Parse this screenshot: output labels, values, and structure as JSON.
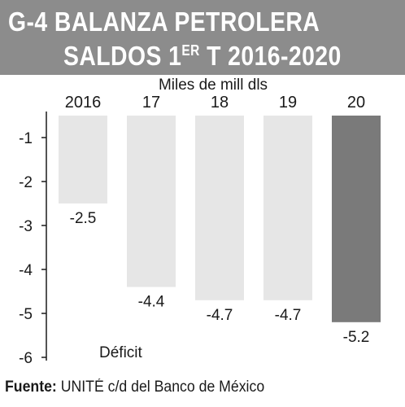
{
  "header": {
    "title_line1": "G-4  BALANZA PETROLERA",
    "title_line2_pre": "SALDOS 1",
    "title_line2_sup": "ER",
    "title_line2_post": " T 2016-2020",
    "bg_color": "#8c8c8c"
  },
  "chart_data": {
    "type": "bar",
    "unit_label": "Miles de mill dls",
    "categories": [
      "2016",
      "17",
      "18",
      "19",
      "20"
    ],
    "values": [
      -2.5,
      -4.4,
      -4.7,
      -4.7,
      -5.2
    ],
    "value_labels": [
      "-2.5",
      "-4.4",
      "-4.7",
      "-4.7",
      "-5.2"
    ],
    "y_ticks": [
      "-1",
      "-2",
      "-3",
      "-4",
      "-5",
      "-6"
    ],
    "ylim": [
      -6,
      -0.5
    ],
    "annotation": "Déficit",
    "bar_color": "#e6e6e6",
    "highlight_color": "#7a7a7a",
    "highlight_index": 4
  },
  "footer": {
    "source_label": "Fuente:",
    "source_text": " UNITÉ c/d del Banco de México"
  }
}
